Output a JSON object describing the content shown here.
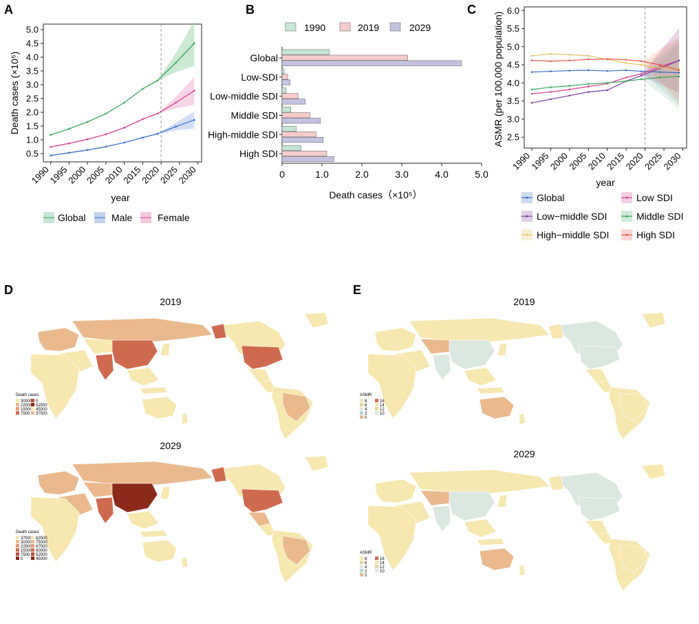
{
  "panels": {
    "A": {
      "letter": "A"
    },
    "B": {
      "letter": "B"
    },
    "C": {
      "letter": "C"
    },
    "D": {
      "letter": "D"
    },
    "E": {
      "letter": "E"
    }
  },
  "chart_data": [
    {
      "id": "A",
      "type": "line",
      "xlabel": "year",
      "ylabel": "Death cases (×10⁵)",
      "xlim": [
        1988,
        2031
      ],
      "ylim": [
        0.2,
        5.2
      ],
      "xticks": [
        1990,
        1995,
        2000,
        2005,
        2010,
        2015,
        2020,
        2025,
        2030
      ],
      "yticks": [
        0.5,
        1.0,
        1.5,
        2.0,
        2.5,
        3.0,
        3.5,
        4.0,
        4.5,
        5.0
      ],
      "ytick_labels": [
        "0.5",
        "1.0",
        "1.5",
        "2.0",
        "2.5",
        "3.0",
        "3.5",
        "4.0",
        "4.5",
        "5.0"
      ],
      "forecast_start": 2020,
      "series": [
        {
          "name": "Global",
          "color": "#3aa75a",
          "band": "#a8dbb5",
          "x": [
            1990,
            1995,
            2000,
            2005,
            2010,
            2015,
            2019,
            2024,
            2029
          ],
          "y": [
            1.18,
            1.4,
            1.65,
            1.95,
            2.35,
            2.85,
            3.15,
            3.8,
            4.5
          ]
        },
        {
          "name": "Male",
          "color": "#3b6fc4",
          "band": "#b3c8ee",
          "x": [
            1990,
            1995,
            2000,
            2005,
            2010,
            2015,
            2019,
            2024,
            2029
          ],
          "y": [
            0.43,
            0.53,
            0.63,
            0.75,
            0.9,
            1.08,
            1.22,
            1.48,
            1.72
          ]
        },
        {
          "name": "Female",
          "color": "#d6418f",
          "band": "#f3b9d6",
          "x": [
            1990,
            1995,
            2000,
            2005,
            2010,
            2015,
            2019,
            2024,
            2029
          ],
          "y": [
            0.74,
            0.87,
            1.02,
            1.2,
            1.44,
            1.75,
            1.95,
            2.35,
            2.78
          ]
        }
      ]
    },
    {
      "id": "B",
      "type": "bar",
      "orientation": "horizontal",
      "xlabel": "Death cases（×10⁵）",
      "xlim": [
        0,
        5.0
      ],
      "xticks": [
        0,
        1.0,
        2.0,
        3.0,
        4.0,
        5.0
      ],
      "xtick_labels": [
        "0",
        "1.0",
        "2.0",
        "3.0",
        "4.0",
        "5.0"
      ],
      "categories": [
        "Global",
        "Low-SDI",
        "Low-middle SDI",
        "Middle SDI",
        "High-middle SDI",
        "High SDI"
      ],
      "series": [
        {
          "name": "1990",
          "color": "#c6e7d6",
          "values": [
            1.18,
            0.05,
            0.1,
            0.22,
            0.35,
            0.47
          ]
        },
        {
          "name": "2019",
          "color": "#f8cccc",
          "values": [
            3.15,
            0.14,
            0.4,
            0.7,
            0.85,
            1.12
          ]
        },
        {
          "name": "2029",
          "color": "#c4c3e2",
          "values": [
            4.5,
            0.2,
            0.58,
            0.96,
            1.03,
            1.3
          ]
        }
      ]
    },
    {
      "id": "C",
      "type": "line",
      "xlabel": "year",
      "ylabel": "ASMR (per 100,000 population)",
      "xlim": [
        1988,
        2031
      ],
      "ylim": [
        2.2,
        6.1
      ],
      "xticks": [
        1990,
        1995,
        2000,
        2005,
        2010,
        2015,
        2020,
        2025,
        2030
      ],
      "yticks": [
        2.5,
        3.0,
        3.5,
        4.0,
        4.5,
        5.0,
        5.5,
        6.0
      ],
      "ytick_labels": [
        "2.5",
        "3.0",
        "3.5",
        "4.0",
        "4.5",
        "5.0",
        "5.5",
        "6.0"
      ],
      "forecast_start": 2020,
      "series": [
        {
          "name": "Global",
          "color": "#3b6fc4",
          "x": [
            1990,
            1995,
            2000,
            2005,
            2010,
            2015,
            2019,
            2024,
            2029
          ],
          "y": [
            4.3,
            4.32,
            4.34,
            4.35,
            4.33,
            4.35,
            4.32,
            4.3,
            4.28
          ]
        },
        {
          "name": "Low SDI",
          "color": "#d6418f",
          "x": [
            1990,
            1995,
            2000,
            2005,
            2010,
            2015,
            2019,
            2024,
            2029
          ],
          "y": [
            3.7,
            3.75,
            3.82,
            3.9,
            3.98,
            4.15,
            4.25,
            4.45,
            4.62
          ]
        },
        {
          "name": "Low−middle SDI",
          "color": "#7b3fa0",
          "x": [
            1990,
            1995,
            2000,
            2005,
            2010,
            2015,
            2019,
            2024,
            2029
          ],
          "y": [
            3.45,
            3.55,
            3.65,
            3.75,
            3.8,
            4.05,
            4.2,
            4.4,
            4.62
          ]
        },
        {
          "name": "Middle SDI",
          "color": "#3aa75a",
          "x": [
            1990,
            1995,
            2000,
            2005,
            2010,
            2015,
            2019,
            2024,
            2029
          ],
          "y": [
            3.82,
            3.88,
            3.92,
            3.97,
            4.0,
            4.05,
            4.1,
            4.15,
            4.18
          ]
        },
        {
          "name": "High−middle SDI",
          "color": "#e3c25a",
          "x": [
            1990,
            1995,
            2000,
            2005,
            2010,
            2015,
            2019,
            2024,
            2029
          ],
          "y": [
            4.75,
            4.8,
            4.78,
            4.75,
            4.65,
            4.55,
            4.5,
            4.42,
            4.38
          ]
        },
        {
          "name": "High SDI",
          "color": "#e4574a",
          "x": [
            1990,
            1995,
            2000,
            2005,
            2010,
            2015,
            2019,
            2024,
            2029
          ],
          "y": [
            4.62,
            4.6,
            4.62,
            4.65,
            4.66,
            4.64,
            4.6,
            4.5,
            4.35
          ]
        }
      ]
    },
    {
      "id": "D",
      "type": "heatmap",
      "subtype": "choropleth",
      "maps": [
        {
          "title": "2019",
          "legend_title": "Death cases",
          "legend_values": [
            "30000",
            "22500",
            "15000",
            "7500",
            "0",
            "52500",
            "45000",
            "37500"
          ]
        },
        {
          "title": "2029",
          "legend_title": "Death cases",
          "legend_values": [
            "37500",
            "30000",
            "22500",
            "15000",
            "7500",
            "0",
            "82500",
            "75000",
            "67500",
            "60000",
            "52500",
            "45000"
          ]
        }
      ]
    },
    {
      "id": "E",
      "type": "heatmap",
      "subtype": "choropleth",
      "maps": [
        {
          "title": "2019",
          "legend_title": "ASMR",
          "legend_values": [
            "8",
            "6",
            "4",
            "2",
            "0",
            "16",
            "14",
            "12",
            "10"
          ]
        },
        {
          "title": "2029",
          "legend_title": "ASMR",
          "legend_values": [
            "8",
            "6",
            "4",
            "2",
            "0",
            "16",
            "14",
            "12",
            "10"
          ]
        }
      ]
    }
  ],
  "colors": {
    "map_low": "#f7e7b0",
    "map_mid": "#eab98e",
    "map_high": "#cf6a50",
    "map_top": "#8b2a1a",
    "map_teal": "#dbe8df",
    "axis": "#222222",
    "grid_dash": "#999999"
  }
}
